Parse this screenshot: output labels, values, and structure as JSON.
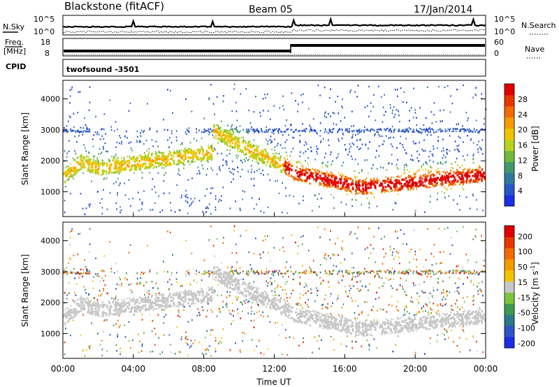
{
  "header": {
    "site": "Blackstone (fitACF)",
    "beam": "Beam 05",
    "date": "17/Jan/2014"
  },
  "noise_panel": {
    "left_label": "N.Sky",
    "right_label": "N.Search",
    "left_ticks": [
      "10^5",
      "10^0"
    ],
    "right_ticks": [
      "10^5",
      "10^0"
    ]
  },
  "freq_panel": {
    "left_label_1": "Freq.",
    "left_label_2": "[MHz]",
    "right_label": "Nave",
    "left_ticks": [
      "18",
      "8"
    ],
    "right_ticks": [
      "60",
      "0"
    ]
  },
  "cpid": {
    "label": "CPID",
    "value": "twofsound -3501"
  },
  "chart_data": [
    {
      "type": "heatmap",
      "ylabel": "Slant Range [km]",
      "ylim": [
        200,
        4600
      ],
      "yticks": [
        1000,
        2000,
        3000,
        4000
      ],
      "xlim": [
        0,
        24
      ],
      "colorbar": {
        "label": "Power [dB]",
        "ticks": [
          "4",
          "8",
          "12",
          "16",
          "20",
          "24",
          "28"
        ],
        "colors": [
          "#1a2ee6",
          "#2a55c8",
          "#2f78a0",
          "#3f9a6c",
          "#6fba3c",
          "#b9d21e",
          "#f2c400",
          "#f59a00",
          "#f26a00",
          "#e83600",
          "#e00000"
        ]
      }
    },
    {
      "type": "heatmap",
      "ylabel": "Velocity [m s^-1]",
      "ylabel_left": "Slant Range [km]",
      "ylim": [
        200,
        4600
      ],
      "yticks": [
        1000,
        2000,
        3000,
        4000
      ],
      "xlim": [
        0,
        24
      ],
      "colorbar": {
        "label": "Velocity [m s",
        "label_sup": "-1",
        "label_end": "]",
        "ticks": [
          "200",
          "100",
          "50",
          "15",
          "-15",
          "-50",
          "-100",
          "-200"
        ],
        "colors": [
          "#1a2ee6",
          "#2d55c8",
          "#2a7a8a",
          "#3f9a50",
          "#7cc43c",
          "#c8c8c8",
          "#f2c400",
          "#f59a00",
          "#f26a00",
          "#e83600",
          "#e00000"
        ]
      }
    }
  ],
  "x_axis": {
    "label": "Time UT",
    "ticks": [
      "00:00",
      "04:00",
      "08:00",
      "12:00",
      "16:00",
      "20:00",
      "00:00"
    ]
  }
}
